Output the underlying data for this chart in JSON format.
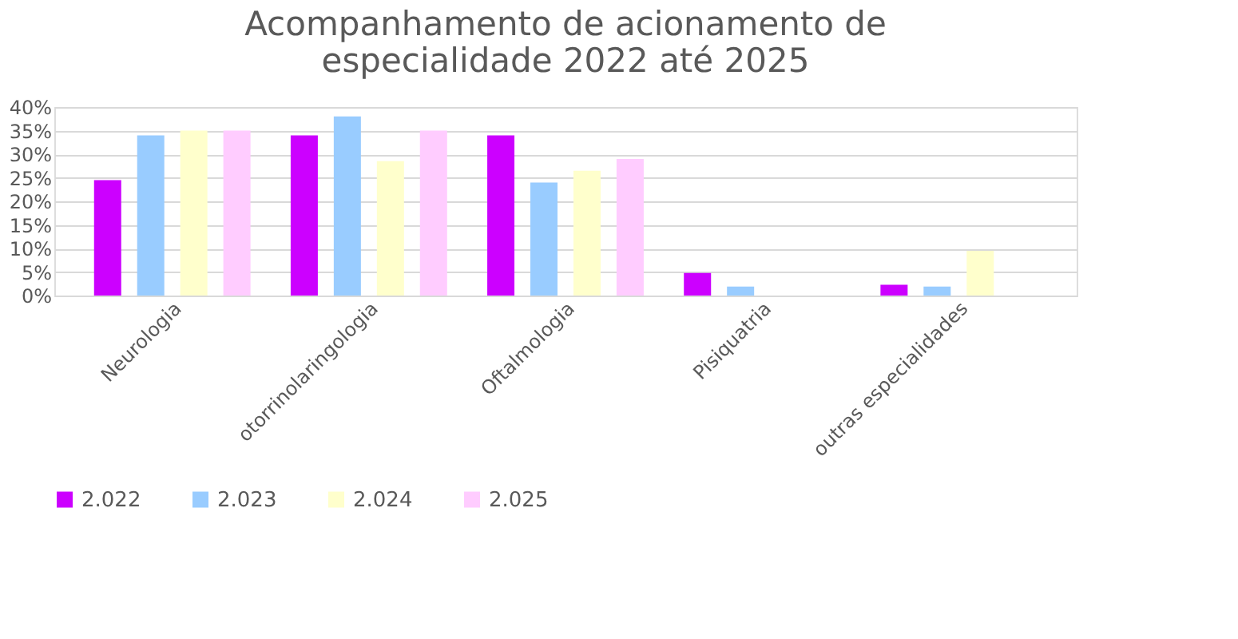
{
  "chart_data": {
    "type": "bar",
    "title": "Acompanhamento de acionamento de especialidade 2022 até 2025",
    "categories": [
      "Neurologia",
      "otorrinolaringologia",
      "Oftalmologia",
      "Pisiquatria",
      "outras especialidades"
    ],
    "series": [
      {
        "name": "2.022",
        "color": "#cc00ff",
        "values": [
          24.5,
          34,
          34,
          4.8,
          2.3
        ]
      },
      {
        "name": "2.023",
        "color": "#99ccff",
        "values": [
          34,
          38,
          24,
          1.9,
          1.9
        ]
      },
      {
        "name": "2.024",
        "color": "#ffffcc",
        "values": [
          35,
          28.5,
          26.5,
          0,
          9.5
        ]
      },
      {
        "name": "2.025",
        "color": "#ffccff",
        "values": [
          35,
          35,
          29,
          0,
          0
        ]
      }
    ],
    "ylim": [
      0,
      40
    ],
    "yticks": [
      {
        "value": 0,
        "label": "0%"
      },
      {
        "value": 5,
        "label": "5%"
      },
      {
        "value": 10,
        "label": "10%"
      },
      {
        "value": 15,
        "label": "15%"
      },
      {
        "value": 20,
        "label": "20%"
      },
      {
        "value": 25,
        "label": "25%"
      },
      {
        "value": 30,
        "label": "30%"
      },
      {
        "value": 35,
        "label": "35%"
      },
      {
        "value": 40,
        "label": "40%"
      }
    ],
    "grid": "y",
    "legend": "bottom"
  }
}
